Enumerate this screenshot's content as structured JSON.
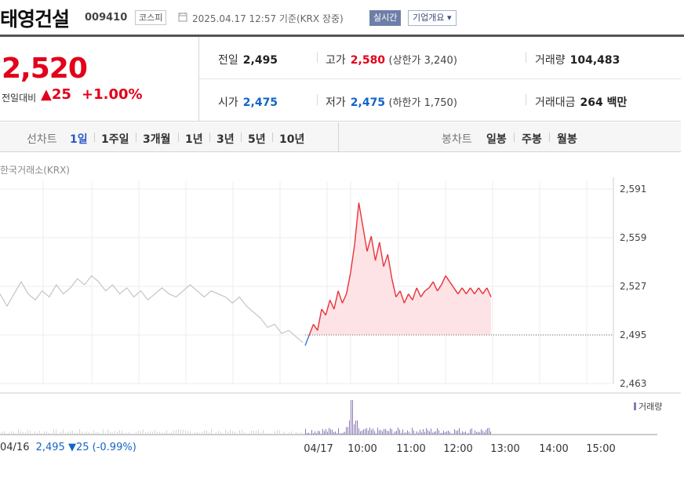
{
  "header": {
    "stock_name": "태영건설",
    "stock_code": "009410",
    "market": "코스피",
    "timestamp": "2025.04.17 12:57  기준(KRX 장중)",
    "realtime_label": "실시간",
    "company_info_label": "기업개요 ▾"
  },
  "price": {
    "current": "2,520",
    "change_label": "전일대비",
    "change": "▲25",
    "change_pct": "+1.00%"
  },
  "stats": {
    "prev_close_label": "전일",
    "prev_close": "2,495",
    "high_label": "고가",
    "high": "2,580",
    "upper_limit": "(상한가 3,240)",
    "volume_label": "거래량",
    "volume": "104,483",
    "open_label": "시가",
    "open": "2,475",
    "low_label": "저가",
    "low": "2,475",
    "lower_limit": "(하한가 1,750)",
    "amount_label": "거래대금",
    "amount": "264 백만"
  },
  "tabs": {
    "line_label": "선차트",
    "line_items": [
      "1일",
      "1주일",
      "3개월",
      "1년",
      "3년",
      "5년",
      "10년"
    ],
    "active_index": 0,
    "candle_label": "봉차트",
    "candle_items": [
      "일봉",
      "주봉",
      "월봉"
    ]
  },
  "chart": {
    "exchange_label": "한국거래소(KRX)",
    "volume_legend": "거래량",
    "footer_date": "04/16",
    "footer_value": "2,495 ▼25 (-0.99%)",
    "colors": {
      "up": "#e8323c",
      "down": "#3a78d8",
      "prev": "#c4c4c4",
      "fill": "#fde3e5",
      "volume": "#8b79b5"
    }
  },
  "chart_data": {
    "type": "line",
    "y_ticks": [
      2463,
      2495,
      2527,
      2559,
      2591
    ],
    "y_tick_labels": [
      "2,463",
      "2,495",
      "2,527",
      "2,559",
      "2,591"
    ],
    "ylim": [
      2463,
      2591
    ],
    "x_tick_labels": [
      "04/16",
      "04/17",
      "10:00",
      "11:00",
      "12:00",
      "13:00",
      "14:00",
      "15:00"
    ],
    "baseline": 2495,
    "series": [
      {
        "name": "04/16",
        "values": [
          2522,
          2514,
          2522,
          2530,
          2522,
          2518,
          2524,
          2520,
          2528,
          2522,
          2526,
          2532,
          2528,
          2534,
          2530,
          2524,
          2528,
          2522,
          2526,
          2520,
          2524,
          2518,
          2522,
          2526,
          2522,
          2520,
          2524,
          2528,
          2524,
          2520,
          2524,
          2522,
          2520,
          2516,
          2520,
          2514,
          2510,
          2506,
          2500,
          2502,
          2496,
          2498,
          2494,
          2490
        ]
      },
      {
        "name": "04/17",
        "values": [
          2488,
          2495,
          2502,
          2498,
          2512,
          2508,
          2518,
          2512,
          2524,
          2516,
          2522,
          2536,
          2555,
          2582,
          2566,
          2550,
          2560,
          2544,
          2556,
          2540,
          2548,
          2532,
          2520,
          2524,
          2516,
          2522,
          2518,
          2526,
          2520,
          2524,
          2526,
          2530,
          2524,
          2528,
          2534,
          2530,
          2526,
          2522,
          2526,
          2522,
          2526,
          2522,
          2526,
          2522,
          2526,
          2520
        ]
      }
    ]
  }
}
